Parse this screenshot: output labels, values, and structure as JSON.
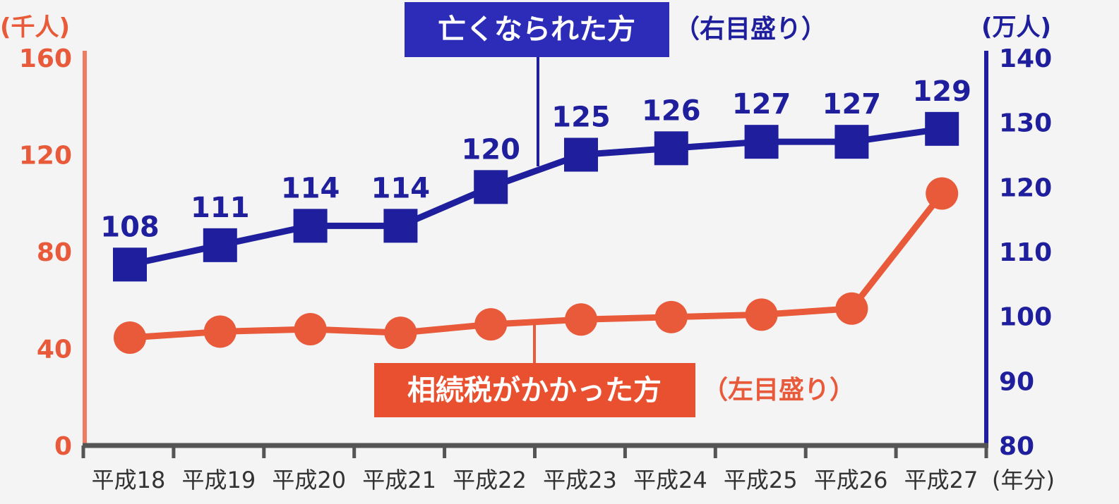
{
  "colors": {
    "blue": "#1f1f9e",
    "red": "#e85a3a",
    "axis_left": "#f07a60",
    "axis_bottom": "#555555",
    "background": "#f4f4f4"
  },
  "chart_data": {
    "type": "line",
    "categories": [
      "平成18",
      "平成19",
      "平成20",
      "平成21",
      "平成22",
      "平成23",
      "平成24",
      "平成25",
      "平成26",
      "平成27"
    ],
    "x_unit": "(年分)",
    "left_axis": {
      "unit": "(千人)",
      "ticks": [
        0,
        40,
        80,
        120,
        160
      ],
      "ylim": [
        0,
        160
      ]
    },
    "right_axis": {
      "unit": "(万人)",
      "ticks": [
        80,
        90,
        100,
        110,
        120,
        130,
        140
      ],
      "ylim": [
        80,
        140
      ]
    },
    "series": [
      {
        "name": "亡くなられた方",
        "axis": "right",
        "scale_note": "（右目盛り）",
        "marker": "square",
        "color": "#1f1f9e",
        "values": [
          108,
          111,
          114,
          114,
          120,
          125,
          126,
          127,
          127,
          129
        ],
        "data_labels": [
          "108",
          "111",
          "114",
          "114",
          "120",
          "125",
          "126",
          "127",
          "127",
          "129"
        ]
      },
      {
        "name": "相続税がかかった方",
        "axis": "left",
        "scale_note": "（左目盛り）",
        "marker": "circle",
        "color": "#e85a3a",
        "values": [
          44.5,
          47,
          48,
          46.5,
          50,
          52,
          53,
          54,
          56.5,
          104
        ]
      }
    ],
    "grid": false,
    "legend": "callout labels"
  }
}
